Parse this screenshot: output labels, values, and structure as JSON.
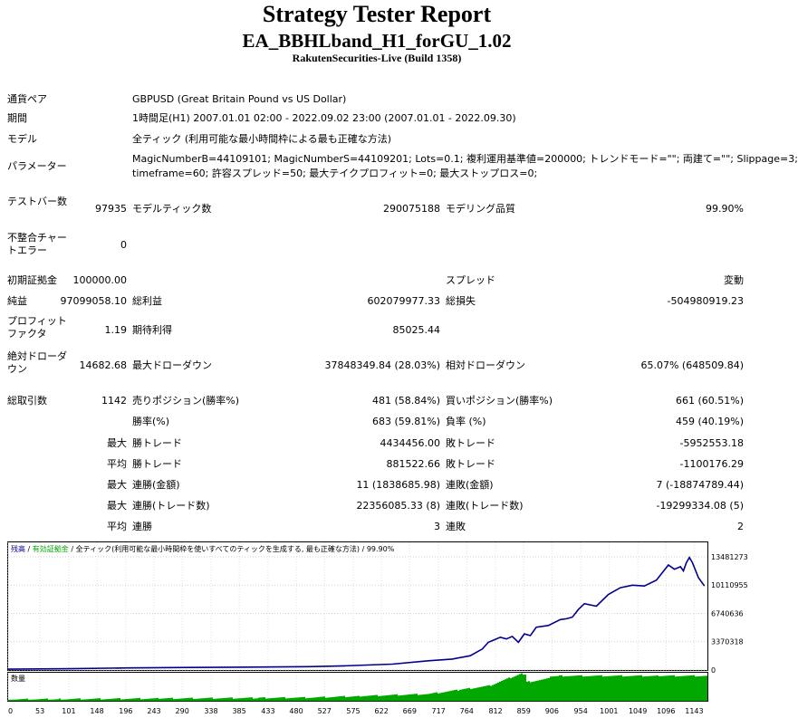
{
  "header": {
    "title": "Strategy Tester Report",
    "ea": "EA_BBHLband_H1_forGU_1.02",
    "server": "RakutenSecurities-Live (Build 1358)"
  },
  "info": {
    "pair_label": "通貨ペア",
    "pair_value": "GBPUSD (Great Britain Pound vs US Dollar)",
    "period_label": "期間",
    "period_value": "1時間足(H1) 2007.01.01 02:00 - 2022.09.02 23:00 (2007.01.01 - 2022.09.30)",
    "model_label": "モデル",
    "model_value": "全ティック (利用可能な最小時間枠による最も正確な方法)",
    "params_label": "パラメーター",
    "params_line1": "MagicNumberB=44109101; MagicNumberS=44109201; Lots=0.1; 複利運用基準値=200000; トレンドモード=\"\"; 両建て=\"\"; Slippage=3;",
    "params_line2": "timeframe=60; 許容スプレッド=50; 最大テイクプロフィット=0; 最大ストップロス=0;"
  },
  "stats": {
    "bars_label": "テストバー数",
    "bars_value": "97935",
    "ticks_label": "モデルティック数",
    "ticks_value": "290075188",
    "quality_label": "モデリング品質",
    "quality_value": "99.90%",
    "mismatch_label": "不整合チャートエラー",
    "mismatch_value": "0",
    "deposit_label": "初期証拠金",
    "deposit_value": "100000.00",
    "spread_label": "スプレッド",
    "spread_value": "変動",
    "net_label": "純益",
    "net_value": "97099058.10",
    "gross_profit_label": "総利益",
    "gross_profit_value": "602079977.33",
    "gross_loss_label": "総損失",
    "gross_loss_value": "-504980919.23",
    "pf_label": "プロフィットファクタ",
    "pf_value": "1.19",
    "expected_label": "期待利得",
    "expected_value": "85025.44",
    "abs_dd_label": "絶対ドローダウン",
    "abs_dd_value": "14682.68",
    "max_dd_label": "最大ドローダウン",
    "max_dd_value": "37848349.84 (28.03%)",
    "rel_dd_label": "相対ドローダウン",
    "rel_dd_value": "65.07% (648509.84)",
    "trades_label": "総取引数",
    "trades_value": "1142",
    "short_label": "売りポジション(勝率%)",
    "short_value": "481 (58.84%)",
    "long_label": "買いポジション(勝率%)",
    "long_value": "661 (60.51%)",
    "win_rate_label": "勝率(%)",
    "win_rate_value": "683 (59.81%)",
    "loss_rate_label": "負率 (%)",
    "loss_rate_value": "459 (40.19%)",
    "max_prefix": "最大",
    "avg_prefix": "平均",
    "max_win_label": "勝トレード",
    "max_win_value": "4434456.00",
    "max_loss_label": "敗トレード",
    "max_loss_value": "-5952553.18",
    "avg_win_label": "勝トレード",
    "avg_win_value": "881522.66",
    "avg_loss_label": "敗トレード",
    "avg_loss_value": "-1100176.29",
    "consec_win_amt_label": "連勝(金額)",
    "consec_win_amt_value": "11 (1838685.98)",
    "consec_loss_amt_label": "連敗(金額)",
    "consec_loss_amt_value": "7 (-18874789.44)",
    "consec_win_cnt_label": "連勝(トレード数)",
    "consec_win_cnt_value": "22356085.33 (8)",
    "consec_loss_cnt_label": "連敗(トレード数)",
    "consec_loss_cnt_value": "-19299334.08 (5)",
    "avg_consec_win_label": "連勝",
    "avg_consec_win_value": "3",
    "avg_consec_loss_label": "連敗",
    "avg_consec_loss_value": "2"
  },
  "chart_data": {
    "type": "line",
    "legend": {
      "balance": "残高",
      "sep1": " / ",
      "equity": "有効証拠金",
      "sep2": " / ",
      "model": "全ティック(利用可能な最小時間枠を使いすべてのティックを生成する, 最も正確な方法)",
      "sep3": " / ",
      "quality": "99.90%"
    },
    "volume_label": "数量",
    "y_ticks": [
      "13481273",
      "10110955",
      "6740636",
      "3370318",
      "0"
    ],
    "y_tick_values": [
      13481273,
      10110955,
      6740636,
      3370318,
      0
    ],
    "x_ticks": [
      "0",
      "53",
      "101",
      "148",
      "196",
      "243",
      "290",
      "338",
      "385",
      "433",
      "480",
      "527",
      "575",
      "622",
      "669",
      "717",
      "764",
      "812",
      "859",
      "906",
      "954",
      "1001",
      "1049",
      "1096",
      "1143"
    ],
    "x_tick_values": [
      0,
      53,
      101,
      148,
      196,
      243,
      290,
      338,
      385,
      433,
      480,
      527,
      575,
      622,
      669,
      717,
      764,
      812,
      859,
      906,
      954,
      1001,
      1049,
      1096,
      1143
    ],
    "xlim": [
      0,
      1165
    ],
    "ylim": [
      0,
      15200000
    ],
    "balance_series": {
      "x": [
        0,
        100,
        200,
        300,
        400,
        500,
        560,
        640,
        700,
        740,
        770,
        790,
        800,
        810,
        820,
        830,
        840,
        850,
        860,
        870,
        880,
        900,
        920,
        930,
        940,
        950,
        960,
        980,
        1000,
        1020,
        1040,
        1060,
        1080,
        1090,
        1100,
        1110,
        1120,
        1125,
        1130,
        1135,
        1140,
        1150,
        1160
      ],
      "y": [
        100000,
        150000,
        250000,
        300000,
        350000,
        400000,
        500000,
        700000,
        1100000,
        1300000,
        1700000,
        2500000,
        3300000,
        3600000,
        3900000,
        3700000,
        4000000,
        3300000,
        4300000,
        4100000,
        5100000,
        5300000,
        6000000,
        6100000,
        6300000,
        7200000,
        7900000,
        7600000,
        9000000,
        9800000,
        10100000,
        10000000,
        10700000,
        11600000,
        12500000,
        12000000,
        12300000,
        11800000,
        12800000,
        13400000,
        12800000,
        11000000,
        10000000
      ]
    },
    "volume_color": "#00a800",
    "balance_color": "#00008b"
  }
}
